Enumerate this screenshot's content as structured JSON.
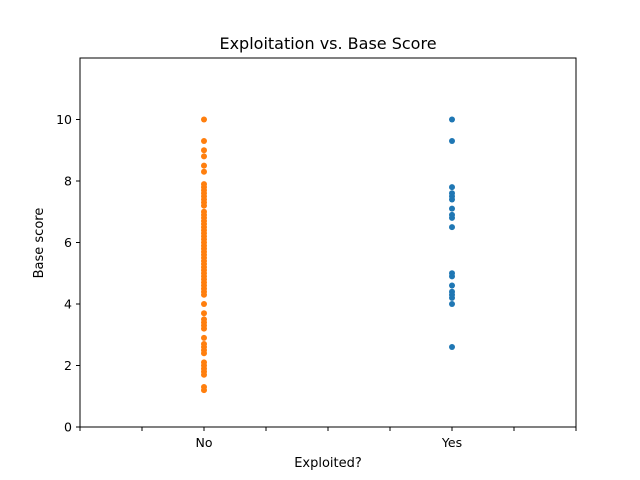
{
  "chart_data": {
    "type": "scatter",
    "title": "Exploitation vs. Base Score",
    "xlabel": "Exploited?",
    "ylabel": "Base score",
    "x_tick_labels": [
      "No",
      "Yes"
    ],
    "yticks": [
      0,
      2,
      4,
      6,
      8,
      10
    ],
    "ylim": [
      0,
      12
    ],
    "grid": false,
    "series": [
      {
        "category": "No",
        "color": "#ff7f0e",
        "values": [
          10.0,
          9.3,
          9.0,
          8.8,
          8.5,
          8.3,
          7.9,
          7.8,
          7.7,
          7.6,
          7.5,
          7.4,
          7.3,
          7.2,
          7.0,
          6.9,
          6.8,
          6.7,
          6.6,
          6.5,
          6.4,
          6.3,
          6.2,
          6.1,
          6.0,
          5.9,
          5.8,
          5.7,
          5.6,
          5.5,
          5.4,
          5.3,
          5.2,
          5.1,
          5.0,
          4.9,
          4.8,
          4.7,
          4.6,
          4.5,
          4.4,
          4.3,
          4.0,
          3.7,
          3.5,
          3.4,
          3.3,
          3.2,
          2.9,
          2.7,
          2.6,
          2.5,
          2.4,
          2.1,
          2.0,
          1.9,
          1.8,
          1.7,
          1.3,
          1.2
        ]
      },
      {
        "category": "Yes",
        "color": "#1f77b4",
        "values": [
          10.0,
          9.3,
          7.8,
          7.6,
          7.5,
          7.4,
          7.1,
          6.9,
          6.8,
          6.5,
          5.0,
          4.9,
          4.6,
          4.4,
          4.3,
          4.2,
          4.0,
          2.6
        ]
      }
    ]
  }
}
